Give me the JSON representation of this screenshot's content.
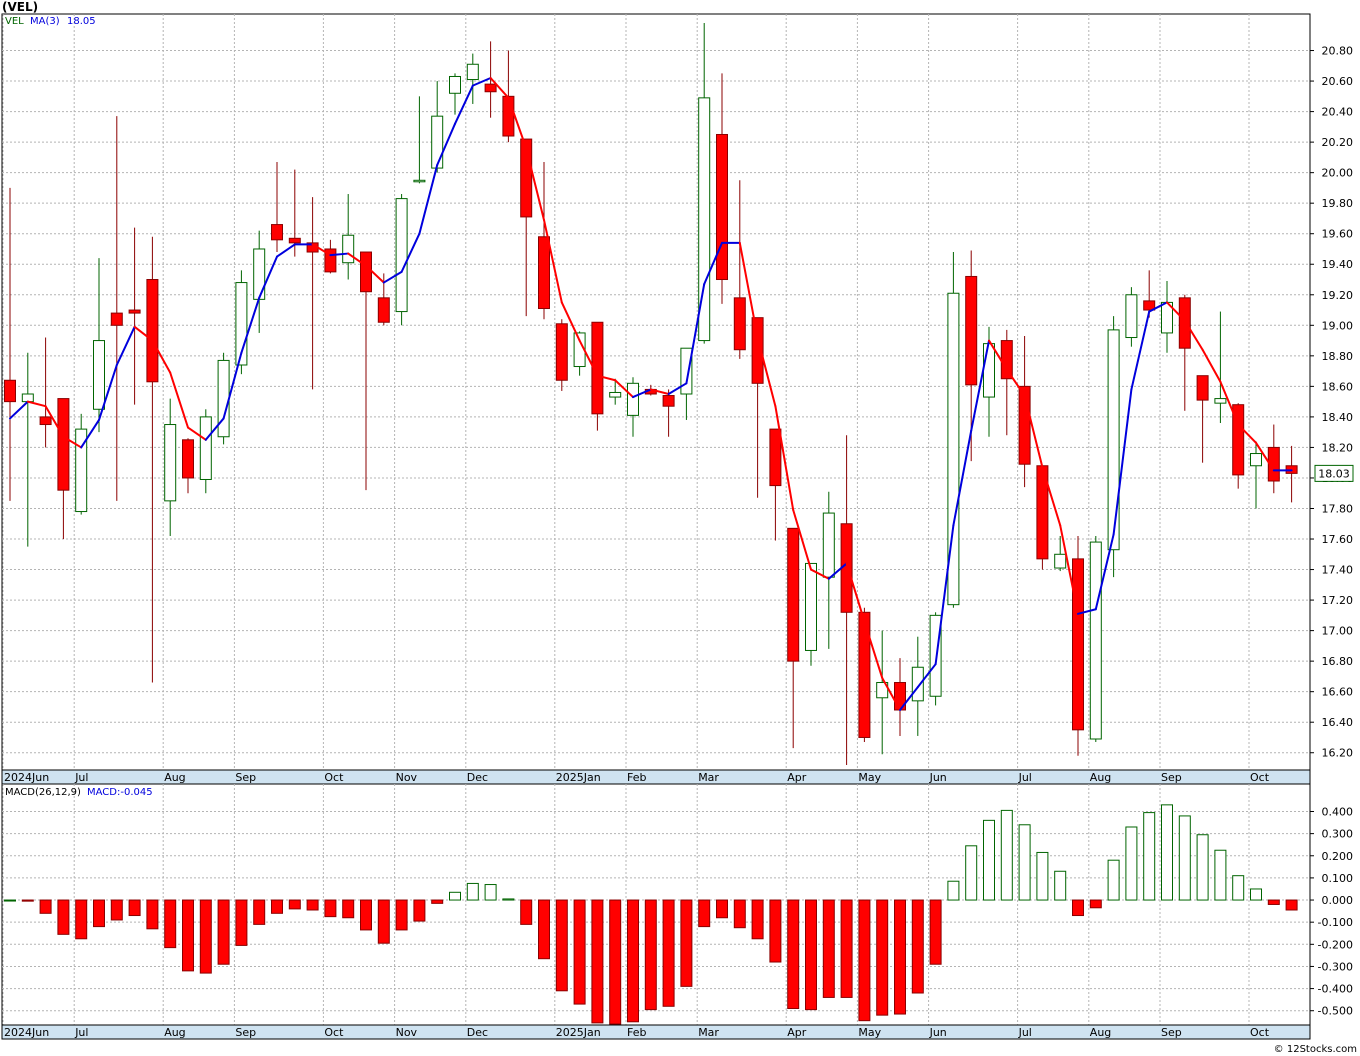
{
  "header": {
    "symbol_label": "(VEL)"
  },
  "footer": {
    "copyright": "© 12Stocks.com"
  },
  "colors": {
    "up": "#006400",
    "down": "#ff0000",
    "down_wick": "#8b0000",
    "ma_up": "#0000dd",
    "ma_down": "#ff0000",
    "grid": "#b4b4b4",
    "axis_band": "#cfe3f1",
    "last_price_box": "#006400"
  },
  "chart_data": [
    {
      "type": "candlestick",
      "legend": {
        "symbol": "VEL",
        "ma_label": "MA(3)",
        "ma_value": "18.05"
      },
      "ylim": [
        16.1,
        21.0
      ],
      "y_ticks": [
        "16.20",
        "16.40",
        "16.60",
        "16.80",
        "17.00",
        "17.20",
        "17.40",
        "17.60",
        "17.80",
        "18.00",
        "18.20",
        "18.40",
        "18.60",
        "18.80",
        "19.00",
        "19.20",
        "19.40",
        "19.60",
        "19.80",
        "20.00",
        "20.20",
        "20.40",
        "20.60",
        "20.80"
      ],
      "last_price": "18.03",
      "x_labels": [
        {
          "index": 0,
          "label": "2024Jun"
        },
        {
          "index": 4,
          "label": "Jul"
        },
        {
          "index": 9,
          "label": "Aug"
        },
        {
          "index": 13,
          "label": "Sep"
        },
        {
          "index": 18,
          "label": "Oct"
        },
        {
          "index": 22,
          "label": "Nov"
        },
        {
          "index": 26,
          "label": "Dec"
        },
        {
          "index": 31,
          "label": "2025Jan"
        },
        {
          "index": 35,
          "label": "Feb"
        },
        {
          "index": 39,
          "label": "Mar"
        },
        {
          "index": 44,
          "label": "Apr"
        },
        {
          "index": 48,
          "label": "May"
        },
        {
          "index": 52,
          "label": "Jun"
        },
        {
          "index": 57,
          "label": "Jul"
        },
        {
          "index": 61,
          "label": "Aug"
        },
        {
          "index": 65,
          "label": "Sep"
        },
        {
          "index": 70,
          "label": "Oct"
        }
      ],
      "candles": [
        {
          "o": 18.64,
          "h": 19.9,
          "l": 17.85,
          "c": 18.5
        },
        {
          "o": 18.5,
          "h": 18.82,
          "l": 17.55,
          "c": 18.55
        },
        {
          "o": 18.4,
          "h": 18.92,
          "l": 18.2,
          "c": 18.35
        },
        {
          "o": 18.52,
          "h": 18.52,
          "l": 17.6,
          "c": 17.92
        },
        {
          "o": 17.78,
          "h": 18.42,
          "l": 17.76,
          "c": 18.32
        },
        {
          "o": 18.45,
          "h": 19.44,
          "l": 18.3,
          "c": 18.9
        },
        {
          "o": 19.08,
          "h": 20.37,
          "l": 17.85,
          "c": 19.0
        },
        {
          "o": 19.1,
          "h": 19.64,
          "l": 18.48,
          "c": 19.08
        },
        {
          "o": 19.3,
          "h": 19.58,
          "l": 16.66,
          "c": 18.63
        },
        {
          "o": 17.85,
          "h": 18.52,
          "l": 17.62,
          "c": 18.35
        },
        {
          "o": 18.25,
          "h": 18.26,
          "l": 17.9,
          "c": 18.0
        },
        {
          "o": 17.99,
          "h": 18.45,
          "l": 17.9,
          "c": 18.4
        },
        {
          "o": 18.27,
          "h": 18.82,
          "l": 18.22,
          "c": 18.77
        },
        {
          "o": 18.74,
          "h": 19.36,
          "l": 18.68,
          "c": 19.28
        },
        {
          "o": 19.17,
          "h": 19.62,
          "l": 18.95,
          "c": 19.5
        },
        {
          "o": 19.66,
          "h": 20.07,
          "l": 19.48,
          "c": 19.56
        },
        {
          "o": 19.57,
          "h": 20.02,
          "l": 19.45,
          "c": 19.54
        },
        {
          "o": 19.54,
          "h": 19.84,
          "l": 18.58,
          "c": 19.48
        },
        {
          "o": 19.5,
          "h": 19.56,
          "l": 19.34,
          "c": 19.35
        },
        {
          "o": 19.41,
          "h": 19.86,
          "l": 19.3,
          "c": 19.59
        },
        {
          "o": 19.48,
          "h": 19.48,
          "l": 17.92,
          "c": 19.22
        },
        {
          "o": 19.18,
          "h": 19.34,
          "l": 19.0,
          "c": 19.02
        },
        {
          "o": 19.09,
          "h": 19.86,
          "l": 19.0,
          "c": 19.83
        },
        {
          "o": 19.95,
          "h": 20.5,
          "l": 19.93,
          "c": 19.95
        },
        {
          "o": 20.03,
          "h": 20.6,
          "l": 20.0,
          "c": 20.37
        },
        {
          "o": 20.52,
          "h": 20.65,
          "l": 20.38,
          "c": 20.63
        },
        {
          "o": 20.61,
          "h": 20.78,
          "l": 20.45,
          "c": 20.71
        },
        {
          "o": 20.58,
          "h": 20.86,
          "l": 20.36,
          "c": 20.53
        },
        {
          "o": 20.5,
          "h": 20.8,
          "l": 20.2,
          "c": 20.24
        },
        {
          "o": 20.22,
          "h": 20.22,
          "l": 19.06,
          "c": 19.71
        },
        {
          "o": 19.58,
          "h": 20.07,
          "l": 19.04,
          "c": 19.11
        },
        {
          "o": 19.01,
          "h": 19.04,
          "l": 18.57,
          "c": 18.64
        },
        {
          "o": 18.73,
          "h": 18.96,
          "l": 18.67,
          "c": 18.95
        },
        {
          "o": 19.02,
          "h": 19.02,
          "l": 18.31,
          "c": 18.42
        },
        {
          "o": 18.53,
          "h": 18.65,
          "l": 18.48,
          "c": 18.56
        },
        {
          "o": 18.41,
          "h": 18.66,
          "l": 18.27,
          "c": 18.62
        },
        {
          "o": 18.58,
          "h": 18.61,
          "l": 18.54,
          "c": 18.55
        },
        {
          "o": 18.54,
          "h": 18.58,
          "l": 18.27,
          "c": 18.47
        },
        {
          "o": 18.55,
          "h": 18.84,
          "l": 18.38,
          "c": 18.85
        },
        {
          "o": 18.9,
          "h": 20.98,
          "l": 18.88,
          "c": 20.49
        },
        {
          "o": 20.25,
          "h": 20.65,
          "l": 19.14,
          "c": 19.3
        },
        {
          "o": 19.18,
          "h": 19.95,
          "l": 18.78,
          "c": 18.84
        },
        {
          "o": 19.05,
          "h": 19.05,
          "l": 17.87,
          "c": 18.62
        },
        {
          "o": 18.32,
          "h": 18.32,
          "l": 17.59,
          "c": 17.95
        },
        {
          "o": 17.67,
          "h": 17.67,
          "l": 16.23,
          "c": 16.8
        },
        {
          "o": 16.87,
          "h": 17.44,
          "l": 16.77,
          "c": 17.44
        },
        {
          "o": 17.35,
          "h": 17.91,
          "l": 16.88,
          "c": 17.77
        },
        {
          "o": 17.7,
          "h": 18.28,
          "l": 16.12,
          "c": 17.12
        },
        {
          "o": 17.12,
          "h": 17.15,
          "l": 16.27,
          "c": 16.3
        },
        {
          "o": 16.56,
          "h": 17.0,
          "l": 16.19,
          "c": 16.66
        },
        {
          "o": 16.66,
          "h": 16.82,
          "l": 16.31,
          "c": 16.48
        },
        {
          "o": 16.54,
          "h": 16.96,
          "l": 16.31,
          "c": 16.76
        },
        {
          "o": 16.57,
          "h": 17.12,
          "l": 16.51,
          "c": 17.1
        },
        {
          "o": 17.17,
          "h": 19.48,
          "l": 17.15,
          "c": 19.21
        },
        {
          "o": 19.32,
          "h": 19.49,
          "l": 18.11,
          "c": 18.61
        },
        {
          "o": 18.53,
          "h": 18.99,
          "l": 18.27,
          "c": 18.88
        },
        {
          "o": 18.9,
          "h": 18.97,
          "l": 18.28,
          "c": 18.65
        },
        {
          "o": 18.6,
          "h": 18.93,
          "l": 17.94,
          "c": 18.09
        },
        {
          "o": 18.08,
          "h": 18.08,
          "l": 17.4,
          "c": 17.47
        },
        {
          "o": 17.41,
          "h": 17.62,
          "l": 17.39,
          "c": 17.5
        },
        {
          "o": 17.47,
          "h": 17.62,
          "l": 16.18,
          "c": 16.35
        },
        {
          "o": 16.29,
          "h": 17.62,
          "l": 16.27,
          "c": 17.58
        },
        {
          "o": 17.53,
          "h": 19.06,
          "l": 17.35,
          "c": 18.97
        },
        {
          "o": 18.92,
          "h": 19.25,
          "l": 18.86,
          "c": 19.2
        },
        {
          "o": 19.16,
          "h": 19.36,
          "l": 19.05,
          "c": 19.1
        },
        {
          "o": 18.95,
          "h": 19.29,
          "l": 18.82,
          "c": 19.15
        },
        {
          "o": 19.18,
          "h": 19.2,
          "l": 18.44,
          "c": 18.85
        },
        {
          "o": 18.67,
          "h": 18.67,
          "l": 18.1,
          "c": 18.51
        },
        {
          "o": 18.49,
          "h": 19.09,
          "l": 18.36,
          "c": 18.52
        },
        {
          "o": 18.48,
          "h": 18.49,
          "l": 17.93,
          "c": 18.02
        },
        {
          "o": 18.08,
          "h": 18.24,
          "l": 17.8,
          "c": 18.16
        },
        {
          "o": 18.2,
          "h": 18.35,
          "l": 17.9,
          "c": 17.98
        },
        {
          "o": 18.08,
          "h": 18.21,
          "l": 17.84,
          "c": 18.03
        }
      ],
      "ma3": [
        18.39,
        18.5,
        18.47,
        18.27,
        18.2,
        18.38,
        18.74,
        18.99,
        18.9,
        18.69,
        18.33,
        18.25,
        18.39,
        18.82,
        19.18,
        19.45,
        19.53,
        19.53,
        19.46,
        19.47,
        19.39,
        19.28,
        19.35,
        19.6,
        20.05,
        20.32,
        20.57,
        20.62,
        20.49,
        20.16,
        19.69,
        19.15,
        18.9,
        18.67,
        18.64,
        18.53,
        18.58,
        18.55,
        18.62,
        19.27,
        19.54,
        19.54,
        18.92,
        18.47,
        17.79,
        17.4,
        17.34,
        17.44,
        17.06,
        16.69,
        16.48,
        16.63,
        16.78,
        17.69,
        18.31,
        18.9,
        18.71,
        18.54,
        18.07,
        17.69,
        17.11,
        17.14,
        17.63,
        18.58,
        19.09,
        19.15,
        19.03,
        18.84,
        18.63,
        18.35,
        18.23,
        18.05,
        18.05
      ]
    },
    {
      "type": "bar",
      "legend": {
        "indicator": "MACD(26,12,9)",
        "value_label": "MACD:-0.045"
      },
      "ylim": [
        -0.56,
        0.47
      ],
      "y_ticks": [
        "-0.500",
        "-0.400",
        "-0.300",
        "-0.200",
        "-0.100",
        "0.000",
        "0.100",
        "0.200",
        "0.300",
        "0.400"
      ],
      "values": [
        0.0,
        -0.005,
        -0.06,
        -0.155,
        -0.175,
        -0.12,
        -0.09,
        -0.07,
        -0.13,
        -0.215,
        -0.32,
        -0.33,
        -0.29,
        -0.205,
        -0.11,
        -0.06,
        -0.04,
        -0.045,
        -0.075,
        -0.08,
        -0.135,
        -0.195,
        -0.135,
        -0.095,
        -0.015,
        0.035,
        0.075,
        0.07,
        0.005,
        -0.11,
        -0.265,
        -0.41,
        -0.47,
        -0.555,
        -0.56,
        -0.55,
        -0.495,
        -0.48,
        -0.39,
        -0.12,
        -0.08,
        -0.125,
        -0.175,
        -0.28,
        -0.49,
        -0.495,
        -0.44,
        -0.44,
        -0.545,
        -0.52,
        -0.515,
        -0.42,
        -0.29,
        0.085,
        0.245,
        0.36,
        0.405,
        0.34,
        0.215,
        0.13,
        -0.07,
        -0.035,
        0.18,
        0.33,
        0.395,
        0.43,
        0.38,
        0.295,
        0.225,
        0.11,
        0.05,
        -0.02,
        -0.045
      ]
    }
  ]
}
